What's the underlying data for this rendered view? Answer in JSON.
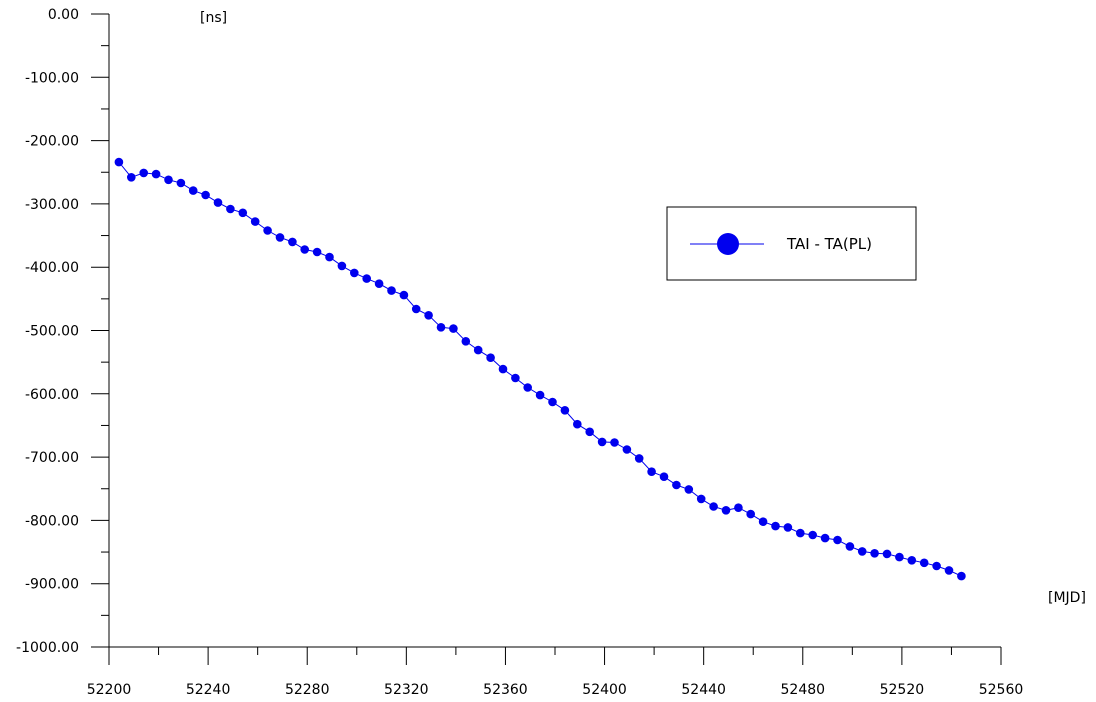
{
  "chart_data": {
    "type": "line",
    "xlabel": "[MJD]",
    "ylabel": "[ns]",
    "xlim": [
      52200,
      52560
    ],
    "ylim": [
      -1000,
      0
    ],
    "x_ticks": [
      52200,
      52240,
      52280,
      52320,
      52360,
      52400,
      52440,
      52480,
      52520,
      52560
    ],
    "y_ticks": [
      0,
      -100,
      -200,
      -300,
      -400,
      -500,
      -600,
      -700,
      -800,
      -900,
      -1000
    ],
    "x_tick_labels": [
      "52200",
      "52240",
      "52280",
      "52320",
      "52360",
      "52400",
      "52440",
      "52480",
      "52520",
      "52560"
    ],
    "y_tick_labels": [
      "0.00",
      "-100.00",
      "-200.00",
      "-300.00",
      "-400.00",
      "-500.00",
      "-600.00",
      "-700.00",
      "-800.00",
      "-900.00",
      "-1000.00"
    ],
    "grid": false,
    "legend_position": "right",
    "series": [
      {
        "name": "TAI - TA(PL)",
        "color": "#0000ee",
        "x": [
          52204,
          52209,
          52214,
          52219,
          52224,
          52229,
          52234,
          52239,
          52244,
          52249,
          52254,
          52259,
          52264,
          52269,
          52274,
          52279,
          52284,
          52289,
          52294,
          52299,
          52304,
          52309,
          52314,
          52319,
          52324,
          52329,
          52334,
          52339,
          52344,
          52349,
          52354,
          52359,
          52364,
          52369,
          52374,
          52379,
          52384,
          52389,
          52394,
          52399,
          52404,
          52409,
          52414,
          52419,
          52424,
          52429,
          52434,
          52439,
          52444,
          52449,
          52454,
          52459,
          52464,
          52469,
          52474,
          52479,
          52484,
          52489,
          52494,
          52499,
          52504,
          52509,
          52514,
          52519,
          52524,
          52529,
          52534,
          52539,
          52544
        ],
        "y": [
          -234,
          -258,
          -251,
          -253,
          -262,
          -267,
          -279,
          -286,
          -298,
          -308,
          -314,
          -328,
          -342,
          -353,
          -360,
          -372,
          -376,
          -384,
          -398,
          -409,
          -418,
          -426,
          -437,
          -444,
          -466,
          -476,
          -495,
          -497,
          -517,
          -531,
          -543,
          -561,
          -575,
          -590,
          -602,
          -613,
          -626,
          -648,
          -660,
          -676,
          -677,
          -688,
          -702,
          -723,
          -731,
          -744,
          -751,
          -766,
          -778,
          -784,
          -780,
          -790,
          -802,
          -809,
          -811,
          -820,
          -823,
          -828,
          -831,
          -841,
          -849,
          -852,
          -853,
          -858,
          -863,
          -867,
          -872,
          -879,
          -888
        ]
      }
    ]
  }
}
